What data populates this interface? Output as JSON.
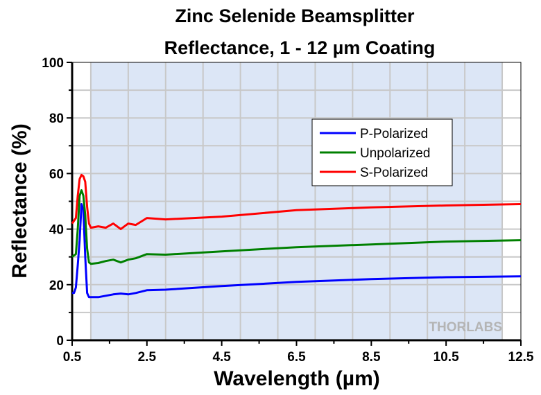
{
  "chart_data": {
    "type": "line",
    "title": [
      "Zinc Selenide Beamsplitter",
      "Reflectance, 1 - 12 µm Coating"
    ],
    "xlabel": "Wavelength (µm)",
    "ylabel": "Reflectance (%)",
    "xlim": [
      0.5,
      12.5
    ],
    "ylim": [
      0,
      100
    ],
    "xticks": [
      0.5,
      2.5,
      4.5,
      6.5,
      8.5,
      10.5,
      12.5
    ],
    "xtick_labels": [
      "0.5",
      "2.5",
      "4.5",
      "6.5",
      "8.5",
      "10.5",
      "12.5"
    ],
    "yticks": [
      0,
      20,
      40,
      60,
      80,
      100
    ],
    "ytick_labels": [
      "0",
      "20",
      "40",
      "60",
      "80",
      "100"
    ],
    "grid": true,
    "shaded_region": [
      1.0,
      12.0
    ],
    "shaded_color": "#dce6f6",
    "legend_position": "upper-right-center",
    "watermark": "THORLABS",
    "series": [
      {
        "name": "P-Polarized",
        "color": "#0000ff",
        "x": [
          0.5,
          0.55,
          0.6,
          0.65,
          0.7,
          0.75,
          0.8,
          0.85,
          0.9,
          0.95,
          1.0,
          1.2,
          1.4,
          1.6,
          1.8,
          2.0,
          2.2,
          2.5,
          3.0,
          4.5,
          6.5,
          8.5,
          10.5,
          12.5
        ],
        "y": [
          17,
          17,
          19,
          27,
          36,
          49,
          47,
          30,
          17,
          15.5,
          15.5,
          15.5,
          16,
          16.5,
          16.8,
          16.5,
          17,
          18,
          18.2,
          19.5,
          21,
          22,
          22.7,
          23
        ]
      },
      {
        "name": "Unpolarized",
        "color": "#008000",
        "x": [
          0.5,
          0.55,
          0.6,
          0.65,
          0.7,
          0.75,
          0.8,
          0.85,
          0.9,
          0.95,
          1.0,
          1.2,
          1.4,
          1.6,
          1.8,
          2.0,
          2.2,
          2.5,
          3.0,
          4.5,
          6.5,
          8.5,
          10.5,
          12.5
        ],
        "y": [
          30,
          30.5,
          31,
          40,
          52,
          54,
          52,
          45,
          33,
          28,
          27.5,
          27.8,
          28.5,
          29,
          28,
          29,
          29.5,
          31,
          30.8,
          32,
          33.5,
          34.5,
          35.5,
          36
        ]
      },
      {
        "name": "S-Polarized",
        "color": "#ff0000",
        "x": [
          0.5,
          0.55,
          0.6,
          0.65,
          0.7,
          0.75,
          0.8,
          0.85,
          0.9,
          0.95,
          1.0,
          1.2,
          1.4,
          1.6,
          1.8,
          2.0,
          2.2,
          2.5,
          3.0,
          4.5,
          6.5,
          8.5,
          10.5,
          12.5
        ],
        "y": [
          42,
          43,
          44,
          52,
          58,
          59.5,
          59,
          57,
          48,
          42,
          40.5,
          41,
          40.5,
          42,
          40,
          42,
          41.5,
          44,
          43.5,
          44.5,
          46.8,
          47.8,
          48.5,
          49
        ]
      }
    ]
  }
}
